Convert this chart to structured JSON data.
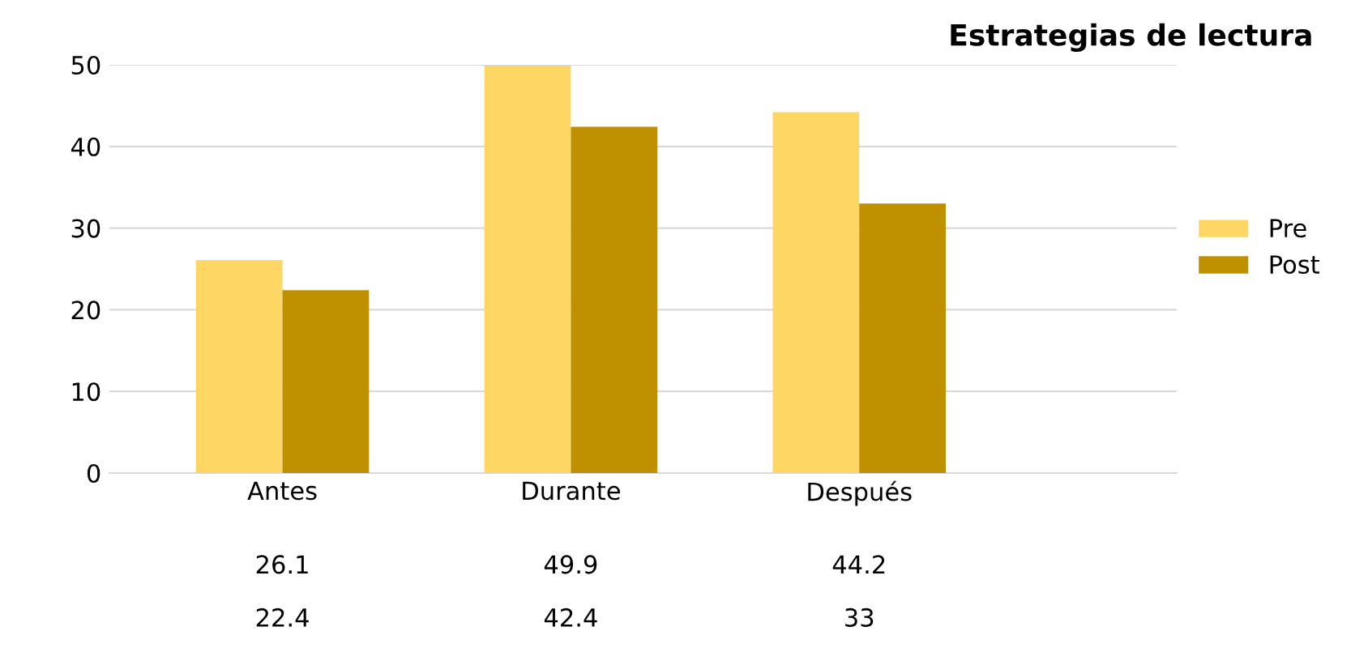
{
  "chart_data": {
    "type": "bar",
    "title": "Estrategias de lectura",
    "categories": [
      "Antes",
      "Durante",
      "Después"
    ],
    "series": [
      {
        "name": "Pre",
        "color": "#fdd663",
        "values": [
          26.1,
          49.9,
          44.2
        ]
      },
      {
        "name": "Post",
        "color": "#bf9000",
        "values": [
          22.4,
          42.4,
          33
        ]
      }
    ],
    "ylim": [
      0,
      50
    ],
    "yticks": [
      0,
      10,
      20,
      30,
      40,
      50
    ],
    "grid": "y",
    "legend": "right",
    "data_labels": true
  }
}
